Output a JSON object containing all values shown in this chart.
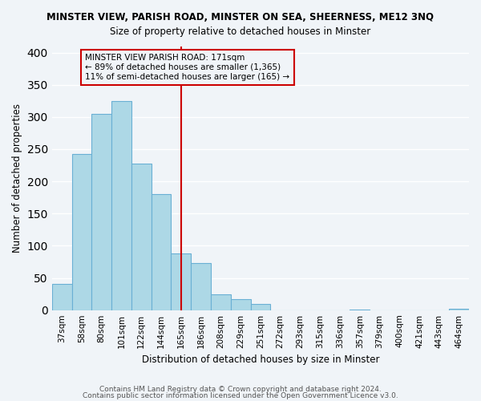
{
  "title": "MINSTER VIEW, PARISH ROAD, MINSTER ON SEA, SHEERNESS, ME12 3NQ",
  "subtitle": "Size of property relative to detached houses in Minster",
  "xlabel": "Distribution of detached houses by size in Minster",
  "ylabel": "Number of detached properties",
  "bar_labels": [
    "37sqm",
    "58sqm",
    "80sqm",
    "101sqm",
    "122sqm",
    "144sqm",
    "165sqm",
    "186sqm",
    "208sqm",
    "229sqm",
    "251sqm",
    "272sqm",
    "293sqm",
    "315sqm",
    "336sqm",
    "357sqm",
    "379sqm",
    "400sqm",
    "421sqm",
    "443sqm",
    "464sqm"
  ],
  "bar_heights": [
    41,
    242,
    305,
    325,
    228,
    180,
    88,
    73,
    25,
    17,
    10,
    0,
    0,
    0,
    0,
    1,
    0,
    0,
    0,
    0,
    2
  ],
  "bar_color": "#add8e6",
  "bar_edge_color": "#6ab0d4",
  "reference_line_x": 6,
  "reference_line_label": "171sqm",
  "reference_line_color": "#cc0000",
  "annotation_title": "MINSTER VIEW PARISH ROAD: 171sqm",
  "annotation_line1": "← 89% of detached houses are smaller (1,365)",
  "annotation_line2": "11% of semi-detached houses are larger (165) →",
  "annotation_box_color": "#cc0000",
  "ylim": [
    0,
    410
  ],
  "yticks": [
    0,
    50,
    100,
    150,
    200,
    250,
    300,
    350,
    400
  ],
  "footer1": "Contains HM Land Registry data © Crown copyright and database right 2024.",
  "footer2": "Contains public sector information licensed under the Open Government Licence v3.0.",
  "background_color": "#f0f4f8",
  "grid_color": "#ffffff"
}
